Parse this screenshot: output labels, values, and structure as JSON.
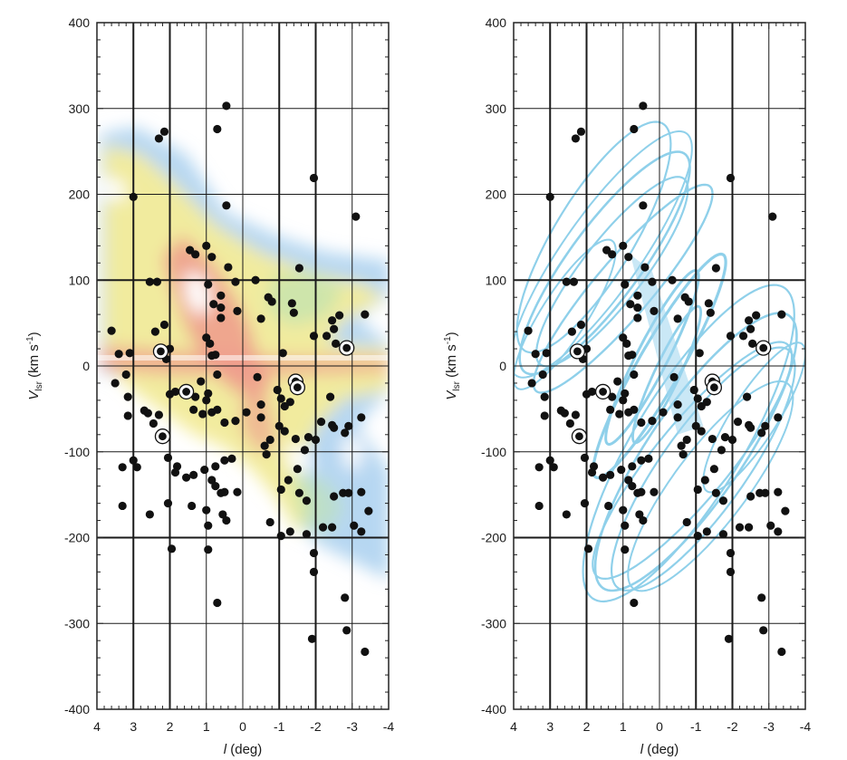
{
  "chart_data": [
    {
      "type": "scatter",
      "title": "",
      "xlabel": "l (deg)",
      "ylabel": "V_lsr (km s^-1)",
      "xlim": [
        4,
        -4
      ],
      "ylim": [
        -400,
        400
      ],
      "x_reversed": true,
      "xticks": [
        4,
        3,
        2,
        1,
        0,
        -1,
        -2,
        -3,
        -4
      ],
      "yticks": [
        -400,
        -300,
        -200,
        -100,
        0,
        100,
        200,
        300,
        400
      ],
      "grid": true,
      "background": "gas emission l-v diagram (color contours)",
      "series": [
        {
          "marker": "filled-circle",
          "color": "#111111"
        }
      ],
      "circled_points": [
        [
          2.25,
          17
        ],
        [
          1.55,
          -30
        ],
        [
          2.2,
          -82
        ],
        [
          -1.45,
          -18
        ],
        [
          -1.5,
          -25
        ],
        [
          -2.85,
          21
        ]
      ]
    },
    {
      "type": "scatter",
      "title": "",
      "xlabel": "l (deg)",
      "ylabel": "V_lsr (km s^-1)",
      "xlim": [
        4,
        -4
      ],
      "ylim": [
        -400,
        400
      ],
      "x_reversed": true,
      "xticks": [
        4,
        3,
        2,
        1,
        0,
        -1,
        -2,
        -3,
        -4
      ],
      "yticks": [
        -400,
        -300,
        -200,
        -100,
        0,
        100,
        200,
        300,
        400
      ],
      "grid": true,
      "background": "model orbit tracks (light blue)",
      "series": [
        {
          "marker": "filled-circle",
          "color": "#111111"
        }
      ],
      "circled_points": [
        [
          2.25,
          17
        ],
        [
          1.55,
          -30
        ],
        [
          2.2,
          -82
        ],
        [
          -1.45,
          -18
        ],
        [
          -1.5,
          -25
        ],
        [
          -2.85,
          21
        ]
      ]
    }
  ],
  "points": [
    [
      0.45,
      303
    ],
    [
      2.15,
      273
    ],
    [
      2.3,
      265
    ],
    [
      0.7,
      276
    ],
    [
      -1.95,
      219
    ],
    [
      3.0,
      197
    ],
    [
      0.45,
      187
    ],
    [
      -3.1,
      174
    ],
    [
      1.45,
      135
    ],
    [
      1.0,
      140
    ],
    [
      1.3,
      130
    ],
    [
      0.85,
      127
    ],
    [
      0.4,
      115
    ],
    [
      -0.35,
      100
    ],
    [
      -1.55,
      114
    ],
    [
      2.55,
      98
    ],
    [
      2.35,
      98
    ],
    [
      0.2,
      98
    ],
    [
      0.95,
      95
    ],
    [
      -0.7,
      80
    ],
    [
      -0.8,
      75
    ],
    [
      0.6,
      82
    ],
    [
      0.6,
      68
    ],
    [
      0.8,
      72
    ],
    [
      0.15,
      64
    ],
    [
      -1.35,
      73
    ],
    [
      -1.4,
      62
    ],
    [
      -0.5,
      55
    ],
    [
      0.6,
      56
    ],
    [
      -2.45,
      53
    ],
    [
      -2.5,
      43
    ],
    [
      -2.65,
      59
    ],
    [
      -3.35,
      60
    ],
    [
      3.6,
      41
    ],
    [
      2.4,
      40
    ],
    [
      2.15,
      48
    ],
    [
      -1.95,
      35
    ],
    [
      1.0,
      33
    ],
    [
      -2.3,
      35
    ],
    [
      0.9,
      26
    ],
    [
      -2.55,
      26
    ],
    [
      3.1,
      15
    ],
    [
      3.4,
      14
    ],
    [
      2.0,
      20
    ],
    [
      2.1,
      8
    ],
    [
      -1.1,
      15
    ],
    [
      0.85,
      12
    ],
    [
      0.75,
      13
    ],
    [
      3.5,
      -20
    ],
    [
      3.2,
      -10
    ],
    [
      0.7,
      -10
    ],
    [
      -0.4,
      -13
    ],
    [
      1.15,
      -18
    ],
    [
      -0.95,
      -28
    ],
    [
      -1.05,
      -38
    ],
    [
      -1.15,
      -47
    ],
    [
      -1.3,
      -42
    ],
    [
      1.85,
      -30
    ],
    [
      0.95,
      -32
    ],
    [
      1.0,
      -40
    ],
    [
      2.0,
      -33
    ],
    [
      1.3,
      -36
    ],
    [
      3.15,
      -36
    ],
    [
      2.7,
      -52
    ],
    [
      2.6,
      -55
    ],
    [
      2.3,
      -57
    ],
    [
      2.45,
      -67
    ],
    [
      1.35,
      -51
    ],
    [
      1.1,
      -56
    ],
    [
      0.85,
      -54
    ],
    [
      0.7,
      -51
    ],
    [
      0.5,
      -66
    ],
    [
      0.2,
      -64
    ],
    [
      -0.1,
      -54
    ],
    [
      -0.5,
      -45
    ],
    [
      -0.5,
      -60
    ],
    [
      -1.0,
      -70
    ],
    [
      -1.15,
      -76
    ],
    [
      -2.15,
      -65
    ],
    [
      -2.4,
      -36
    ],
    [
      -2.45,
      -69
    ],
    [
      -2.5,
      -72
    ],
    [
      -2.8,
      -78
    ],
    [
      -2.9,
      -70
    ],
    [
      -3.25,
      -60
    ],
    [
      -1.8,
      -83
    ],
    [
      -2.0,
      -86
    ],
    [
      -1.45,
      -85
    ],
    [
      -1.7,
      -98
    ],
    [
      -0.75,
      -86
    ],
    [
      -0.6,
      -93
    ],
    [
      -0.65,
      -103
    ],
    [
      3.15,
      -58
    ],
    [
      3.0,
      -110
    ],
    [
      2.9,
      -118
    ],
    [
      3.3,
      -118
    ],
    [
      2.05,
      -107
    ],
    [
      1.8,
      -117
    ],
    [
      1.55,
      -130
    ],
    [
      1.85,
      -124
    ],
    [
      1.35,
      -127
    ],
    [
      1.05,
      -121
    ],
    [
      0.75,
      -117
    ],
    [
      0.5,
      -110
    ],
    [
      0.3,
      -108
    ],
    [
      0.85,
      -133
    ],
    [
      0.75,
      -140
    ],
    [
      0.6,
      -148
    ],
    [
      0.5,
      -147
    ],
    [
      0.15,
      -147
    ],
    [
      -1.5,
      -120
    ],
    [
      -1.25,
      -133
    ],
    [
      -1.05,
      -144
    ],
    [
      -1.55,
      -148
    ],
    [
      -1.75,
      -157
    ],
    [
      -2.5,
      -152
    ],
    [
      -2.75,
      -148
    ],
    [
      -2.9,
      -148
    ],
    [
      -3.25,
      -147
    ],
    [
      2.55,
      -173
    ],
    [
      3.3,
      -163
    ],
    [
      2.05,
      -160
    ],
    [
      1.4,
      -163
    ],
    [
      1.0,
      -168
    ],
    [
      0.55,
      -173
    ],
    [
      0.45,
      -180
    ],
    [
      0.95,
      -186
    ],
    [
      -0.75,
      -182
    ],
    [
      -1.05,
      -198
    ],
    [
      -1.3,
      -193
    ],
    [
      -1.75,
      -196
    ],
    [
      -2.2,
      -188
    ],
    [
      -2.45,
      -188
    ],
    [
      -3.05,
      -186
    ],
    [
      -3.45,
      -169
    ],
    [
      -3.25,
      -193
    ],
    [
      -1.95,
      -218
    ],
    [
      -1.95,
      -240
    ],
    [
      1.95,
      -213
    ],
    [
      0.95,
      -214
    ],
    [
      0.7,
      -276
    ],
    [
      -2.8,
      -270
    ],
    [
      -2.85,
      -308
    ],
    [
      -1.9,
      -318
    ],
    [
      -3.35,
      -333
    ]
  ]
}
